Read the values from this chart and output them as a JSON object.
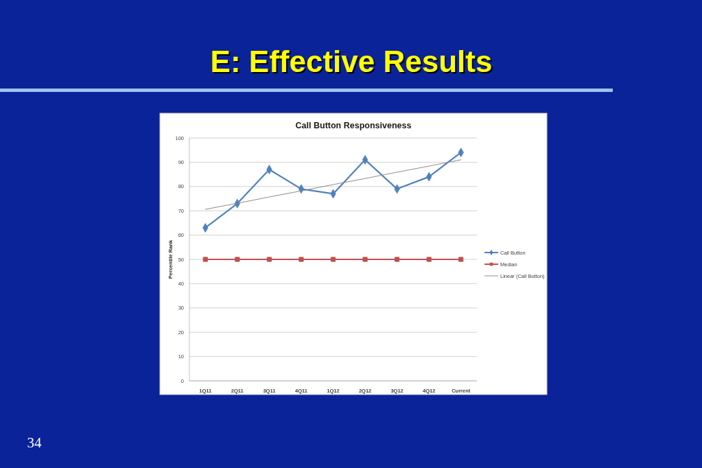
{
  "chart_data": {
    "type": "line",
    "title": "E: Effective Results",
    "subtitle": "Call Button Responsiveness",
    "ylabel": "Percentile Rank",
    "categories": [
      "1Q11",
      "2Q11",
      "3Q11",
      "4Q11",
      "1Q12",
      "2Q12",
      "3Q12",
      "4Q12",
      "Current"
    ],
    "series": [
      {
        "name": "Call Button",
        "color": "#4f81bd",
        "marker": "diamond",
        "values": [
          63,
          73,
          87,
          79,
          77,
          91,
          79,
          84,
          94
        ]
      },
      {
        "name": "Median",
        "color": "#c0504d",
        "marker": "square",
        "values": [
          50,
          50,
          50,
          50,
          50,
          50,
          50,
          50,
          50
        ]
      },
      {
        "name": "Linear (Call Button)",
        "type": "line",
        "color": "#8c8c8c",
        "marker": "none",
        "values": [
          70.6,
          73.1,
          75.7,
          78.2,
          80.8,
          83.3,
          85.9,
          88.4,
          91.0
        ]
      }
    ],
    "ylim": [
      0,
      100
    ],
    "yticks": [
      0,
      10,
      20,
      30,
      40,
      50,
      60,
      70,
      80,
      90,
      100
    ],
    "grid": "y",
    "legend": "right",
    "annotations": [
      "34"
    ]
  }
}
